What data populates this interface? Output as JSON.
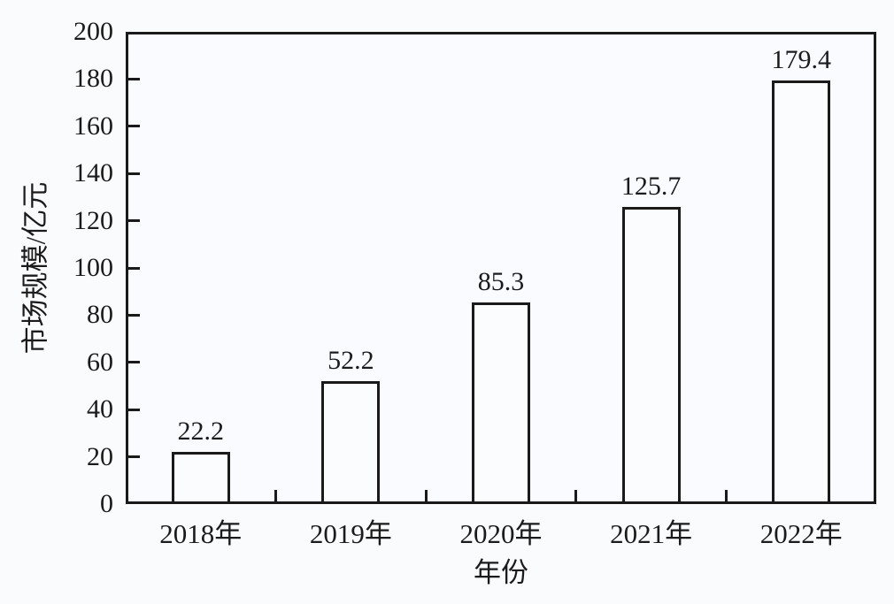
{
  "chart_data": {
    "type": "bar",
    "categories": [
      "2018年",
      "2019年",
      "2020年",
      "2021年",
      "2022年"
    ],
    "values": [
      22.2,
      52.2,
      85.3,
      125.7,
      179.4
    ],
    "value_labels": [
      "22.2",
      "52.2",
      "85.3",
      "125.7",
      "179.4"
    ],
    "title": "",
    "xlabel": "年份",
    "ylabel": "市场规模/亿元",
    "ylim": [
      0,
      200
    ],
    "yticks": [
      0,
      20,
      40,
      60,
      80,
      100,
      120,
      140,
      160,
      180,
      200
    ],
    "grid": false,
    "legend_position": "none",
    "bar_fill": "#fbfcfe",
    "bar_border": "#1a1a1a"
  },
  "colors": {
    "background": "#fafbfd",
    "axis": "#1a1a1a",
    "text": "#1b1b1b"
  }
}
